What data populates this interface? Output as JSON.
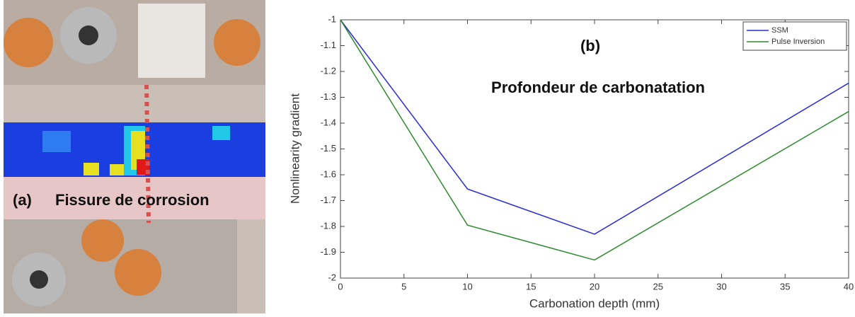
{
  "panel_a": {
    "label": "(a)",
    "caption": "Fissure de corrosion"
  },
  "chart_data": {
    "type": "line",
    "annotations": [
      "(b)",
      "Profondeur de carbonatation"
    ],
    "x_label": "Carbonation depth (mm)",
    "y_label": "Nonlinearity gradient",
    "x": [
      0,
      10,
      20,
      40
    ],
    "series": [
      {
        "name": "SSM",
        "color": "#2a2ad8",
        "values": [
          -1,
          -1.655,
          -1.83,
          -1.245
        ]
      },
      {
        "name": "Pulse Inversion",
        "color": "#2e8b2e",
        "values": [
          -1,
          -1.795,
          -1.93,
          -1.355
        ]
      }
    ],
    "xlim": [
      0,
      40
    ],
    "xticks": [
      0,
      5,
      10,
      15,
      20,
      25,
      30,
      35,
      40
    ],
    "ylim": [
      -2,
      -1
    ],
    "yticks": [
      -1,
      -1.1,
      -1.2,
      -1.3,
      -1.4,
      -1.5,
      -1.6,
      -1.7,
      -1.8,
      -1.9,
      -2
    ],
    "legend": "top-right",
    "grid": false
  }
}
